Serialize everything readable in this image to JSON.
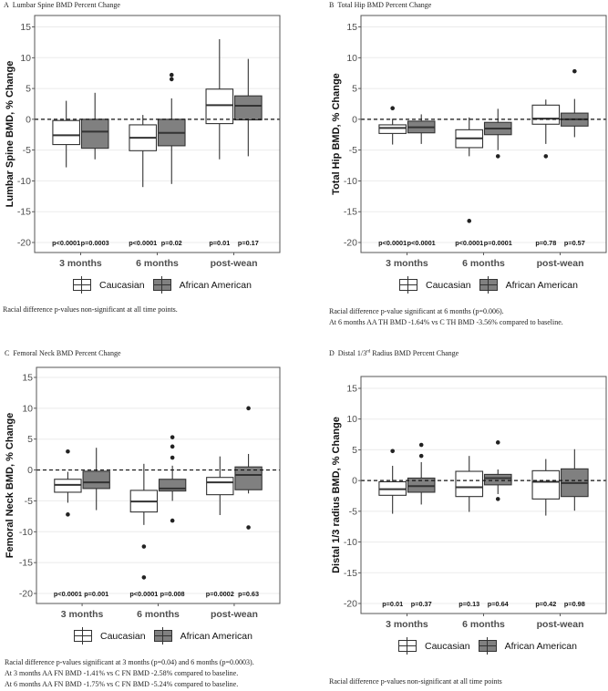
{
  "colors": {
    "caucasian": "#ffffff",
    "african_american": "#808080",
    "stroke": "#333333"
  },
  "chart_data": [
    {
      "panel": "A",
      "type": "box",
      "title": "Lumbar Spine BMD Percent Change",
      "ylabel": "Lumbar Spine BMD, % Change",
      "ylim": [
        -21.7,
        16.5
      ],
      "yticks": [
        "15",
        "10",
        "5",
        "0",
        "-5",
        "-10",
        "-15",
        "-20"
      ],
      "reference_line": 0,
      "categories": [
        "3 months",
        "6 months",
        "post-wean"
      ],
      "legend": [
        "Caucasian",
        "African American"
      ],
      "series": [
        {
          "name": "Caucasian",
          "boxes": [
            {
              "low": -7.8,
              "q1": -4.1,
              "median": -2.6,
              "q3": -0.2,
              "high": 3.0,
              "outliers": [],
              "p": "p<0.0001"
            },
            {
              "low": -11.0,
              "q1": -5.1,
              "median": -3.0,
              "q3": -0.9,
              "high": 0.7,
              "outliers": [],
              "p": "p<0.0001"
            },
            {
              "low": -6.5,
              "q1": -0.7,
              "median": 2.3,
              "q3": 4.9,
              "high": 13.0,
              "outliers": [],
              "p": "p=0.01"
            }
          ]
        },
        {
          "name": "African American",
          "boxes": [
            {
              "low": -6.5,
              "q1": -4.7,
              "median": -2.0,
              "q3": 0.0,
              "high": 4.3,
              "outliers": [],
              "p": "p=0.0003"
            },
            {
              "low": -10.5,
              "q1": -4.3,
              "median": -2.2,
              "q3": 0.0,
              "high": 3.4,
              "outliers": [
                6.5,
                7.2
              ],
              "p": "p=0.02"
            },
            {
              "low": -6.0,
              "q1": -0.1,
              "median": 2.2,
              "q3": 3.8,
              "high": 9.8,
              "outliers": [],
              "p": "p=0.17"
            }
          ]
        }
      ],
      "captions": [
        "Racial difference p-values non-significant at all time points."
      ]
    },
    {
      "panel": "B",
      "type": "box",
      "title": "Total Hip BMD Percent Change",
      "ylabel": "Total Hip BMD, % Change",
      "ylim": [
        -21.7,
        16.5
      ],
      "yticks": [
        "15",
        "10",
        "5",
        "0",
        "-5",
        "-10",
        "-15",
        "-20"
      ],
      "reference_line": 0,
      "categories": [
        "3 months",
        "6 months",
        "post-wean"
      ],
      "legend": [
        "Caucasian",
        "African American"
      ],
      "series": [
        {
          "name": "Caucasian",
          "boxes": [
            {
              "low": -4.1,
              "q1": -2.3,
              "median": -1.4,
              "q3": -0.9,
              "high": 0.1,
              "outliers": [
                1.8
              ],
              "p": "p<0.0001"
            },
            {
              "low": -6.0,
              "q1": -4.6,
              "median": -3.1,
              "q3": -1.7,
              "high": 0.3,
              "outliers": [
                -16.5
              ],
              "p": "p<0.0001"
            },
            {
              "low": -4.0,
              "q1": -0.8,
              "median": 0.1,
              "q3": 2.3,
              "high": 3.2,
              "outliers": [
                -6.0
              ],
              "p": "p=0.78"
            }
          ]
        },
        {
          "name": "African American",
          "boxes": [
            {
              "low": -4.0,
              "q1": -2.2,
              "median": -1.3,
              "q3": -0.3,
              "high": 0.8,
              "outliers": [],
              "p": "p<0.0001"
            },
            {
              "low": -5.0,
              "q1": -2.5,
              "median": -1.5,
              "q3": -0.5,
              "high": 1.7,
              "outliers": [
                -6.0
              ],
              "p": "p=0.0001"
            },
            {
              "low": -2.9,
              "q1": -1.1,
              "median": 0.0,
              "q3": 1.0,
              "high": 3.3,
              "outliers": [
                7.8
              ],
              "p": "p=0.57"
            }
          ]
        }
      ],
      "captions": [
        "Racial difference p-value significant at 6 months (p=0.006).",
        "At 6 months AA TH BMD -1.64% vs C TH BMD -3.56% compared to baseline."
      ]
    },
    {
      "panel": "C",
      "type": "box",
      "title": "Femoral Neck BMD Percent Change",
      "ylabel": "Femoral Neck BMD, % Change",
      "ylim": [
        -21.7,
        16.5
      ],
      "yticks": [
        "15",
        "10",
        "5",
        "0",
        "-5",
        "-10",
        "-15",
        "-20"
      ],
      "reference_line": 0,
      "categories": [
        "3 months",
        "6 months",
        "post-wean"
      ],
      "legend": [
        "Caucasian",
        "African American"
      ],
      "series": [
        {
          "name": "Caucasian",
          "boxes": [
            {
              "low": -5.3,
              "q1": -3.6,
              "median": -2.4,
              "q3": -1.5,
              "high": -0.3,
              "outliers": [
                3.0,
                -7.2
              ],
              "p": "p<0.0001"
            },
            {
              "low": -8.9,
              "q1": -6.8,
              "median": -5.1,
              "q3": -3.3,
              "high": 1.0,
              "outliers": [
                -12.4,
                -17.4
              ],
              "p": "p<0.0001"
            },
            {
              "low": -7.3,
              "q1": -4.0,
              "median": -2.0,
              "q3": -1.2,
              "high": 2.2,
              "outliers": [],
              "p": "p=0.0002"
            }
          ]
        },
        {
          "name": "African American",
          "boxes": [
            {
              "low": -6.5,
              "q1": -3.0,
              "median": -2.0,
              "q3": -0.2,
              "high": 3.6,
              "outliers": [],
              "p": "p=0.001"
            },
            {
              "low": -5.0,
              "q1": -3.4,
              "median": -3.0,
              "q3": -1.5,
              "high": 0.7,
              "outliers": [
                2.0,
                3.8,
                5.3,
                -8.2
              ],
              "p": "p=0.008"
            },
            {
              "low": -3.8,
              "q1": -3.2,
              "median": -0.8,
              "q3": 0.5,
              "high": 2.6,
              "outliers": [
                10.0,
                -9.3
              ],
              "p": "p=0.63"
            }
          ]
        }
      ],
      "captions": [
        "Racial difference p-values significant at 3 months (p=0.04) and  6 months (p=0.0003).",
        "At 3 months AA FN BMD -1.41% vs C FN BMD -2.58% compared to baseline.",
        "At 6 months AA FN BMD -1.75% vs C FN BMD -5.24% compared to baseline."
      ]
    },
    {
      "panel": "D",
      "type": "box",
      "title": "Distal 1/3",
      "title_sup": "rd",
      "title_rest": " Radius BMD Percent Change",
      "ylabel": "Distal 1/3 radius BMD, % Change",
      "ylim": [
        -21.7,
        16.5
      ],
      "yticks": [
        "15",
        "10",
        "5",
        "0",
        "-5",
        "-10",
        "-15",
        "-20"
      ],
      "reference_line": 0,
      "categories": [
        "3 months",
        "6 months",
        "post-wean"
      ],
      "legend": [
        "Caucasian",
        "African American"
      ],
      "series": [
        {
          "name": "Caucasian",
          "boxes": [
            {
              "low": -5.4,
              "q1": -2.4,
              "median": -1.4,
              "q3": -0.2,
              "high": 2.4,
              "outliers": [
                4.8
              ],
              "p": "p=0.01"
            },
            {
              "low": -5.1,
              "q1": -2.6,
              "median": -1.1,
              "q3": 1.5,
              "high": 4.0,
              "outliers": [],
              "p": "p=0.13"
            },
            {
              "low": -5.7,
              "q1": -3.0,
              "median": -0.2,
              "q3": 1.6,
              "high": 3.5,
              "outliers": [],
              "p": "p=0.42"
            }
          ]
        },
        {
          "name": "African American",
          "boxes": [
            {
              "low": -3.9,
              "q1": -1.9,
              "median": -0.9,
              "q3": 0.4,
              "high": 3.0,
              "outliers": [
                4.0,
                5.8
              ],
              "p": "p=0.37"
            },
            {
              "low": -2.2,
              "q1": -0.7,
              "median": 0.4,
              "q3": 1.0,
              "high": 1.8,
              "outliers": [
                6.2,
                -3.0
              ],
              "p": "p=0.64"
            },
            {
              "low": -4.9,
              "q1": -2.6,
              "median": -0.4,
              "q3": 1.9,
              "high": 5.1,
              "outliers": [],
              "p": "p=0.98"
            }
          ]
        }
      ],
      "captions": [
        "Racial difference p-values non-significant at all time points"
      ]
    }
  ]
}
